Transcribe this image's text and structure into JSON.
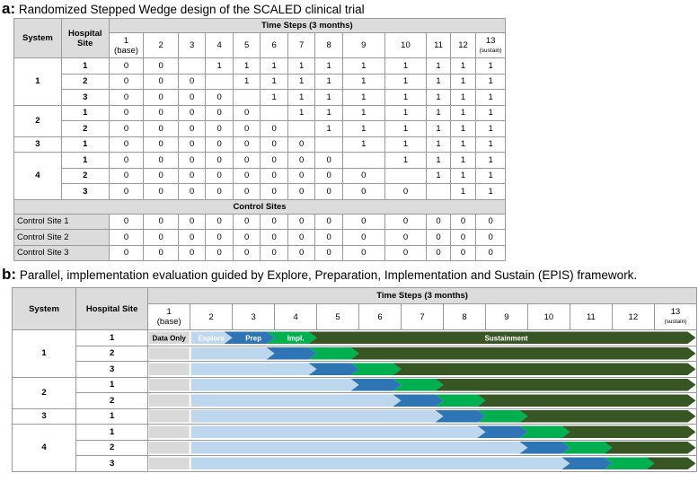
{
  "colors": {
    "header_grey": "#dcdcdc",
    "data_only": "#d9d9d9",
    "explore": "#bdd7ee",
    "prep": "#2e75b6",
    "impl": "#00b050",
    "sustain": "#375623"
  },
  "panel_a": {
    "letter": "a",
    "title": "Randomized Stepped Wedge design of the SCALED clinical trial",
    "col_system": "System",
    "col_site": "Hospital Site",
    "time_steps_header": "Time Steps (3 months)",
    "steps": [
      "1",
      "2",
      "3",
      "4",
      "5",
      "6",
      "7",
      "8",
      "9",
      "10",
      "11",
      "12",
      "13"
    ],
    "step1_sub": "(base)",
    "step13_sub": "(sustain)",
    "systems": [
      {
        "system": "1",
        "sites": [
          {
            "site": "1",
            "values": [
              "0",
              "0",
              "",
              "1",
              "1",
              "1",
              "1",
              "1",
              "1",
              "1",
              "1",
              "1",
              "1"
            ]
          },
          {
            "site": "2",
            "values": [
              "0",
              "0",
              "0",
              "",
              "1",
              "1",
              "1",
              "1",
              "1",
              "1",
              "1",
              "1",
              "1"
            ]
          },
          {
            "site": "3",
            "values": [
              "0",
              "0",
              "0",
              "0",
              "",
              "1",
              "1",
              "1",
              "1",
              "1",
              "1",
              "1",
              "1"
            ]
          }
        ]
      },
      {
        "system": "2",
        "sites": [
          {
            "site": "1",
            "values": [
              "0",
              "0",
              "0",
              "0",
              "0",
              "",
              "1",
              "1",
              "1",
              "1",
              "1",
              "1",
              "1"
            ]
          },
          {
            "site": "2",
            "values": [
              "0",
              "0",
              "0",
              "0",
              "0",
              "0",
              "",
              "1",
              "1",
              "1",
              "1",
              "1",
              "1"
            ]
          }
        ]
      },
      {
        "system": "3",
        "sites": [
          {
            "site": "1",
            "values": [
              "0",
              "0",
              "0",
              "0",
              "0",
              "0",
              "0",
              "",
              "1",
              "1",
              "1",
              "1",
              "1"
            ]
          }
        ]
      },
      {
        "system": "4",
        "sites": [
          {
            "site": "1",
            "values": [
              "0",
              "0",
              "0",
              "0",
              "0",
              "0",
              "0",
              "0",
              "",
              "1",
              "1",
              "1",
              "1"
            ]
          },
          {
            "site": "2",
            "values": [
              "0",
              "0",
              "0",
              "0",
              "0",
              "0",
              "0",
              "0",
              "0",
              "",
              "1",
              "1",
              "1"
            ]
          },
          {
            "site": "3",
            "values": [
              "0",
              "0",
              "0",
              "0",
              "0",
              "0",
              "0",
              "0",
              "0",
              "0",
              "",
              "1",
              "1"
            ]
          }
        ]
      }
    ],
    "control_header": "Control Sites",
    "controls": [
      {
        "label": "Control Site 1",
        "values": [
          "0",
          "0",
          "0",
          "0",
          "0",
          "0",
          "0",
          "0",
          "0",
          "0",
          "0",
          "0",
          "0"
        ]
      },
      {
        "label": "Control Site 2",
        "values": [
          "0",
          "0",
          "0",
          "0",
          "0",
          "0",
          "0",
          "0",
          "0",
          "0",
          "0",
          "0",
          "0"
        ]
      },
      {
        "label": "Control Site 3",
        "values": [
          "0",
          "0",
          "0",
          "0",
          "0",
          "0",
          "0",
          "0",
          "0",
          "0",
          "0",
          "0",
          "0"
        ]
      }
    ]
  },
  "panel_b": {
    "letter": "b",
    "title": "Parallel, implementation evaluation guided by Explore, Preparation, Implementation and Sustain (EPIS) framework.",
    "col_system": "System",
    "col_site": "Hospital Site",
    "time_steps_header": "Time Steps (3 months)",
    "steps": [
      "1",
      "2",
      "3",
      "4",
      "5",
      "6",
      "7",
      "8",
      "9",
      "10",
      "11",
      "12",
      "13"
    ],
    "step1_sub": "(base)",
    "step13_sub": "(sustain)",
    "phase_labels": {
      "data_only": "Data Only",
      "explore": "Explore",
      "prep": "Prep",
      "impl": "Impl.",
      "sustain": "Sustainment"
    },
    "systems": [
      {
        "system": "1",
        "sites": [
          {
            "site": "1",
            "prep_step": 3
          },
          {
            "site": "2",
            "prep_step": 4
          },
          {
            "site": "3",
            "prep_step": 5
          }
        ]
      },
      {
        "system": "2",
        "sites": [
          {
            "site": "1",
            "prep_step": 6
          },
          {
            "site": "2",
            "prep_step": 7
          }
        ]
      },
      {
        "system": "3",
        "sites": [
          {
            "site": "1",
            "prep_step": 8
          }
        ]
      },
      {
        "system": "4",
        "sites": [
          {
            "site": "1",
            "prep_step": 9
          },
          {
            "site": "2",
            "prep_step": 10
          },
          {
            "site": "3",
            "prep_step": 11
          }
        ]
      }
    ]
  }
}
